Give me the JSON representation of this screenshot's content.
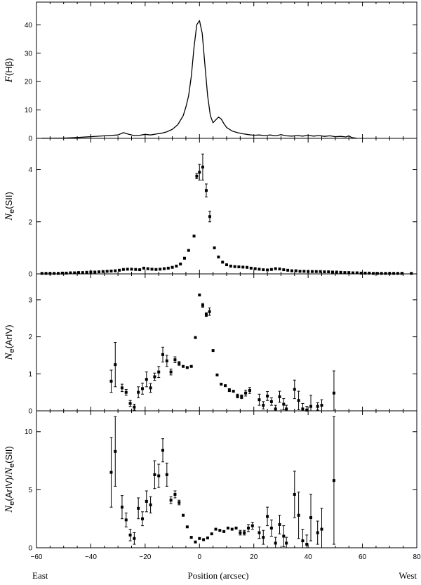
{
  "chart_data": [
    {
      "type": "line",
      "ylabel": {
        "main": "F",
        "paren": "(Hβ)"
      },
      "xlim": [
        -60,
        80
      ],
      "ylim": [
        0,
        48
      ],
      "yticks": [
        0,
        10,
        20,
        30,
        40
      ],
      "x": [
        -58,
        -50,
        -45,
        -40,
        -35,
        -30,
        -28,
        -26,
        -24,
        -22,
        -20,
        -18,
        -16,
        -14,
        -12,
        -10,
        -8,
        -6,
        -5,
        -4,
        -3,
        -2,
        -1,
        0,
        1,
        2,
        3,
        4,
        5,
        6,
        7,
        8,
        9,
        10,
        12,
        14,
        16,
        18,
        20,
        22,
        24,
        26,
        28,
        30,
        32,
        34,
        36,
        38,
        40,
        42,
        44,
        46,
        48,
        50,
        52,
        54,
        55,
        56,
        58
      ],
      "values": [
        0,
        0.1,
        0.3,
        0.6,
        0.9,
        1.2,
        2.0,
        1.4,
        1.0,
        1.1,
        1.4,
        1.2,
        1.5,
        1.8,
        2.3,
        3.2,
        4.8,
        8.0,
        11.0,
        15.0,
        22.0,
        32.0,
        40.0,
        41.5,
        37.0,
        26.0,
        15.0,
        8.0,
        5.5,
        6.5,
        7.5,
        6.8,
        5.2,
        3.8,
        2.6,
        2.0,
        1.6,
        1.3,
        1.1,
        1.2,
        1.0,
        1.2,
        0.9,
        1.3,
        0.9,
        0.8,
        1.0,
        0.8,
        1.1,
        0.8,
        1.0,
        0.7,
        0.9,
        0.6,
        0.7,
        0.5,
        0.9,
        0.3,
        0
      ]
    },
    {
      "type": "scatter",
      "ylabel": {
        "main": "N",
        "sub": "e",
        "paren": "(SII)"
      },
      "xlim": [
        -60,
        80
      ],
      "ylim": [
        0,
        5.2
      ],
      "yticks": [
        0,
        2,
        4
      ],
      "points": [
        {
          "x": -58,
          "y": 0.02
        },
        {
          "x": -56.5,
          "y": 0.02
        },
        {
          "x": -55,
          "y": 0.02
        },
        {
          "x": -53.5,
          "y": 0.02
        },
        {
          "x": -52,
          "y": 0.02
        },
        {
          "x": -50.5,
          "y": 0.03
        },
        {
          "x": -49,
          "y": 0.03
        },
        {
          "x": -47.5,
          "y": 0.04
        },
        {
          "x": -46,
          "y": 0.04
        },
        {
          "x": -44.5,
          "y": 0.05
        },
        {
          "x": -43,
          "y": 0.05
        },
        {
          "x": -41.5,
          "y": 0.06
        },
        {
          "x": -40,
          "y": 0.07
        },
        {
          "x": -38.5,
          "y": 0.07
        },
        {
          "x": -37,
          "y": 0.08
        },
        {
          "x": -35.5,
          "y": 0.09
        },
        {
          "x": -34,
          "y": 0.1
        },
        {
          "x": -32.5,
          "y": 0.11
        },
        {
          "x": -31,
          "y": 0.12
        },
        {
          "x": -29.5,
          "y": 0.14
        },
        {
          "x": -28,
          "y": 0.17
        },
        {
          "x": -26.5,
          "y": 0.18
        },
        {
          "x": -25,
          "y": 0.18
        },
        {
          "x": -23.5,
          "y": 0.17
        },
        {
          "x": -22,
          "y": 0.16
        },
        {
          "x": -20.5,
          "y": 0.22
        },
        {
          "x": -19,
          "y": 0.2
        },
        {
          "x": -17.5,
          "y": 0.18
        },
        {
          "x": -16,
          "y": 0.17
        },
        {
          "x": -14.5,
          "y": 0.18
        },
        {
          "x": -13,
          "y": 0.2
        },
        {
          "x": -11.5,
          "y": 0.22
        },
        {
          "x": -10,
          "y": 0.25
        },
        {
          "x": -8.5,
          "y": 0.3
        },
        {
          "x": -7,
          "y": 0.38
        },
        {
          "x": -5.5,
          "y": 0.6
        },
        {
          "x": -4,
          "y": 0.9
        },
        {
          "x": -2,
          "y": 1.45
        },
        {
          "x": -1,
          "y": 3.75,
          "err": 0.1
        },
        {
          "x": 0,
          "y": 3.9,
          "err": 0.3
        },
        {
          "x": 1.2,
          "y": 4.1,
          "err": 0.5
        },
        {
          "x": 2.5,
          "y": 3.2,
          "err": 0.25
        },
        {
          "x": 3.8,
          "y": 2.2,
          "err": 0.2
        },
        {
          "x": 5.5,
          "y": 1.0
        },
        {
          "x": 7,
          "y": 0.65
        },
        {
          "x": 8.5,
          "y": 0.45
        },
        {
          "x": 10,
          "y": 0.35
        },
        {
          "x": 11.5,
          "y": 0.3
        },
        {
          "x": 13,
          "y": 0.28
        },
        {
          "x": 14.5,
          "y": 0.27
        },
        {
          "x": 16,
          "y": 0.26
        },
        {
          "x": 17.5,
          "y": 0.25
        },
        {
          "x": 19,
          "y": 0.22
        },
        {
          "x": 20.5,
          "y": 0.2
        },
        {
          "x": 22,
          "y": 0.18
        },
        {
          "x": 23.5,
          "y": 0.16
        },
        {
          "x": 25,
          "y": 0.15
        },
        {
          "x": 26.5,
          "y": 0.17
        },
        {
          "x": 28,
          "y": 0.2
        },
        {
          "x": 29.5,
          "y": 0.19
        },
        {
          "x": 31,
          "y": 0.16
        },
        {
          "x": 32.5,
          "y": 0.14
        },
        {
          "x": 34,
          "y": 0.12
        },
        {
          "x": 35.5,
          "y": 0.12
        },
        {
          "x": 37,
          "y": 0.1
        },
        {
          "x": 38.5,
          "y": 0.1
        },
        {
          "x": 40,
          "y": 0.09
        },
        {
          "x": 41.5,
          "y": 0.09
        },
        {
          "x": 43,
          "y": 0.09
        },
        {
          "x": 44.5,
          "y": 0.09
        },
        {
          "x": 46,
          "y": 0.08
        },
        {
          "x": 47.5,
          "y": 0.08
        },
        {
          "x": 49,
          "y": 0.07
        },
        {
          "x": 50.5,
          "y": 0.07
        },
        {
          "x": 52,
          "y": 0.06
        },
        {
          "x": 53.5,
          "y": 0.05
        },
        {
          "x": 55,
          "y": 0.05
        },
        {
          "x": 56.5,
          "y": 0.04
        },
        {
          "x": 58,
          "y": 0.04
        },
        {
          "x": 59.5,
          "y": 0.03
        },
        {
          "x": 61,
          "y": 0.03
        },
        {
          "x": 62.5,
          "y": 0.03
        },
        {
          "x": 64,
          "y": 0.02
        },
        {
          "x": 65.5,
          "y": 0.02
        },
        {
          "x": 67,
          "y": 0.02
        },
        {
          "x": 68.5,
          "y": 0.02
        },
        {
          "x": 70,
          "y": 0.02
        },
        {
          "x": 71.5,
          "y": 0.02
        },
        {
          "x": 73,
          "y": 0.02
        },
        {
          "x": 74.5,
          "y": 0.02
        },
        {
          "x": 78,
          "y": 0.02
        }
      ]
    },
    {
      "type": "scatter",
      "ylabel": {
        "main": "N",
        "sub": "e",
        "paren": "(ArIV)"
      },
      "xlim": [
        -60,
        80
      ],
      "ylim": [
        0,
        3.7
      ],
      "yticks": [
        0,
        1,
        2,
        3
      ],
      "points": [
        {
          "x": -32.5,
          "y": 0.8,
          "err": 0.3
        },
        {
          "x": -31,
          "y": 1.25,
          "err": 0.6
        },
        {
          "x": -28.5,
          "y": 0.62,
          "err": 0.1
        },
        {
          "x": -27,
          "y": 0.5,
          "err": 0.08
        },
        {
          "x": -25.5,
          "y": 0.2,
          "err": 0.08
        },
        {
          "x": -24,
          "y": 0.1,
          "err": 0.08
        },
        {
          "x": -22.5,
          "y": 0.5,
          "err": 0.15
        },
        {
          "x": -21,
          "y": 0.6,
          "err": 0.15
        },
        {
          "x": -19.5,
          "y": 0.85,
          "err": 0.2
        },
        {
          "x": -18,
          "y": 0.62,
          "err": 0.12
        },
        {
          "x": -16.5,
          "y": 0.92,
          "err": 0.1
        },
        {
          "x": -15,
          "y": 1.05,
          "err": 0.15
        },
        {
          "x": -13.5,
          "y": 1.52,
          "err": 0.2
        },
        {
          "x": -12,
          "y": 1.35,
          "err": 0.15
        },
        {
          "x": -10.5,
          "y": 1.05,
          "err": 0.08
        },
        {
          "x": -9,
          "y": 1.38,
          "err": 0.08
        },
        {
          "x": -7.5,
          "y": 1.28,
          "err": 0.05
        },
        {
          "x": -6,
          "y": 1.2
        },
        {
          "x": -4.5,
          "y": 1.17
        },
        {
          "x": -3,
          "y": 1.2
        },
        {
          "x": -1.5,
          "y": 1.98
        },
        {
          "x": 0,
          "y": 3.13
        },
        {
          "x": 1.2,
          "y": 2.85,
          "err": 0.05
        },
        {
          "x": 2.5,
          "y": 2.6,
          "err": 0.05
        },
        {
          "x": 3.7,
          "y": 2.68,
          "err": 0.1
        },
        {
          "x": 5,
          "y": 1.63
        },
        {
          "x": 6.5,
          "y": 0.97
        },
        {
          "x": 8,
          "y": 0.72
        },
        {
          "x": 9.5,
          "y": 0.68
        },
        {
          "x": 11,
          "y": 0.56,
          "err": 0.04
        },
        {
          "x": 12.5,
          "y": 0.53
        },
        {
          "x": 14,
          "y": 0.4,
          "err": 0.05
        },
        {
          "x": 15.5,
          "y": 0.38,
          "err": 0.05
        },
        {
          "x": 17,
          "y": 0.48,
          "err": 0.08
        },
        {
          "x": 18.5,
          "y": 0.55,
          "err": 0.08
        },
        {
          "x": 22,
          "y": 0.3,
          "err": 0.15
        },
        {
          "x": 23.5,
          "y": 0.15,
          "err": 0.1
        },
        {
          "x": 25,
          "y": 0.4,
          "err": 0.12
        },
        {
          "x": 26.5,
          "y": 0.25,
          "err": 0.1
        },
        {
          "x": 28,
          "y": 0.05,
          "err": 0.1
        },
        {
          "x": 29.5,
          "y": 0.38,
          "err": 0.15
        },
        {
          "x": 31,
          "y": 0.18,
          "err": 0.15
        },
        {
          "x": 32,
          "y": 0.05,
          "err": 0.1
        },
        {
          "x": 35,
          "y": 0.58,
          "err": 0.25
        },
        {
          "x": 36.5,
          "y": 0.28,
          "err": 0.25
        },
        {
          "x": 38,
          "y": 0.05,
          "err": 0.15
        },
        {
          "x": 39.5,
          "y": 0.02,
          "err": 0.1
        },
        {
          "x": 41,
          "y": 0.12,
          "err": 0.3
        },
        {
          "x": 43.5,
          "y": 0.12,
          "err": 0.1
        },
        {
          "x": 45,
          "y": 0.15,
          "err": 0.15
        },
        {
          "x": 49.5,
          "y": 0.48,
          "err": 0.6
        }
      ]
    },
    {
      "type": "scatter",
      "ylabel": {
        "main": "N",
        "sub": "e",
        "paren": "(ArIV)/",
        "main2": "N",
        "sub2": "e",
        "paren2": "(SII)"
      },
      "xlim": [
        -60,
        80
      ],
      "ylim": [
        0,
        11.8
      ],
      "yticks": [
        0,
        5,
        10
      ],
      "xticks": [
        -60,
        -40,
        -20,
        0,
        20,
        40,
        60,
        80
      ],
      "points": [
        {
          "x": -32.5,
          "y": 6.5,
          "err": 3.0
        },
        {
          "x": -31,
          "y": 8.3,
          "err": 3.0
        },
        {
          "x": -28.5,
          "y": 3.5,
          "err": 1.0
        },
        {
          "x": -27,
          "y": 2.4,
          "err": 0.6
        },
        {
          "x": -25.5,
          "y": 1.1,
          "err": 0.5
        },
        {
          "x": -24,
          "y": 0.8,
          "err": 0.5
        },
        {
          "x": -22.5,
          "y": 3.4,
          "err": 0.9
        },
        {
          "x": -21,
          "y": 2.5,
          "err": 0.6
        },
        {
          "x": -19.5,
          "y": 4.0,
          "err": 0.9
        },
        {
          "x": -18,
          "y": 3.7,
          "err": 0.7
        },
        {
          "x": -16.5,
          "y": 6.3,
          "err": 1.2
        },
        {
          "x": -15,
          "y": 6.2,
          "err": 1.0
        },
        {
          "x": -13.5,
          "y": 8.4,
          "err": 1.0
        },
        {
          "x": -12,
          "y": 6.3,
          "err": 1.0
        },
        {
          "x": -10.5,
          "y": 4.1,
          "err": 0.3
        },
        {
          "x": -9,
          "y": 4.6,
          "err": 0.3
        },
        {
          "x": -7.5,
          "y": 3.9,
          "err": 0.2
        },
        {
          "x": -6,
          "y": 2.8
        },
        {
          "x": -4.5,
          "y": 1.8
        },
        {
          "x": -3,
          "y": 0.9
        },
        {
          "x": -1.5,
          "y": 0.5
        },
        {
          "x": 0,
          "y": 0.8
        },
        {
          "x": 1.5,
          "y": 0.7
        },
        {
          "x": 3,
          "y": 0.85
        },
        {
          "x": 4.5,
          "y": 1.2
        },
        {
          "x": 6,
          "y": 1.6
        },
        {
          "x": 7.5,
          "y": 1.5
        },
        {
          "x": 9,
          "y": 1.4
        },
        {
          "x": 10.5,
          "y": 1.7
        },
        {
          "x": 12,
          "y": 1.6
        },
        {
          "x": 13.5,
          "y": 1.7
        },
        {
          "x": 15,
          "y": 1.3,
          "err": 0.2
        },
        {
          "x": 16.5,
          "y": 1.3,
          "err": 0.2
        },
        {
          "x": 18,
          "y": 1.7,
          "err": 0.3
        },
        {
          "x": 19.5,
          "y": 1.9,
          "err": 0.3
        },
        {
          "x": 22,
          "y": 1.3,
          "err": 0.5
        },
        {
          "x": 23.5,
          "y": 0.9,
          "err": 0.6
        },
        {
          "x": 25,
          "y": 2.7,
          "err": 0.8
        },
        {
          "x": 26.5,
          "y": 1.7,
          "err": 0.7
        },
        {
          "x": 28,
          "y": 0.4,
          "err": 0.5
        },
        {
          "x": 29.5,
          "y": 2.0,
          "err": 0.8
        },
        {
          "x": 31,
          "y": 1.0,
          "err": 0.9
        },
        {
          "x": 32,
          "y": 0.4,
          "err": 0.5
        },
        {
          "x": 35,
          "y": 4.6,
          "err": 2.0
        },
        {
          "x": 36.5,
          "y": 2.8,
          "err": 2.0
        },
        {
          "x": 38,
          "y": 0.6,
          "err": 1.0
        },
        {
          "x": 39.5,
          "y": 0.3,
          "err": 0.8
        },
        {
          "x": 41,
          "y": 2.6,
          "err": 2.0
        },
        {
          "x": 43.5,
          "y": 1.3,
          "err": 1.0
        },
        {
          "x": 45,
          "y": 1.6,
          "err": 1.8
        },
        {
          "x": 49.5,
          "y": 5.8,
          "err": 5.5
        }
      ]
    }
  ],
  "xtick_labels": [
    "−60",
    "−40",
    "−20",
    "0",
    "20",
    "40",
    "60",
    "80"
  ],
  "xlabel": "Position (arcsec)",
  "east_label": "East",
  "west_label": "West"
}
